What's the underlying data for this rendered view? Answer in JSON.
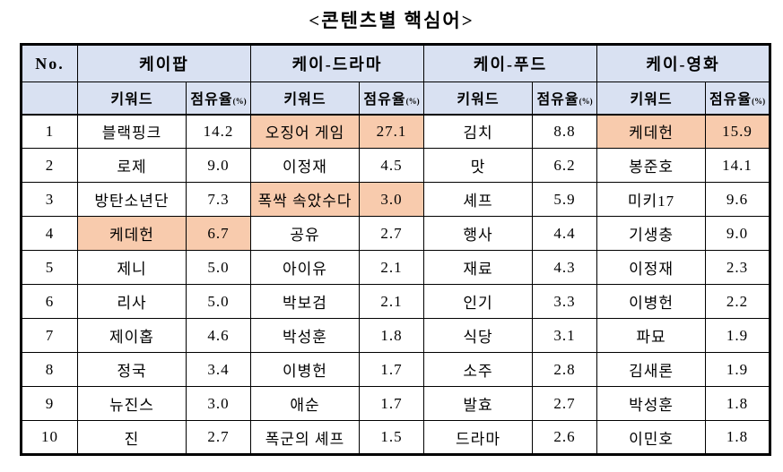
{
  "title": "<콘텐츠별 핵심어>",
  "colors": {
    "header_bg": "#D9E1F2",
    "highlight_bg": "#F8CBAD",
    "border": "#000000",
    "text": "#000000"
  },
  "table": {
    "no_header": "No.",
    "categories": [
      "케이팝",
      "케이-드라마",
      "케이-푸드",
      "케이-영화"
    ],
    "keyword_label": "키워드",
    "share_label": "점유율",
    "share_unit": "(%)",
    "rows": [
      {
        "no": "1",
        "cells": [
          {
            "kw": "블랙핑크",
            "share": "14.2",
            "hl": false
          },
          {
            "kw": "오징어 게임",
            "share": "27.1",
            "hl": true
          },
          {
            "kw": "김치",
            "share": "8.8",
            "hl": false
          },
          {
            "kw": "케데헌",
            "share": "15.9",
            "hl": true
          }
        ]
      },
      {
        "no": "2",
        "cells": [
          {
            "kw": "로제",
            "share": "9.0",
            "hl": false
          },
          {
            "kw": "이정재",
            "share": "4.5",
            "hl": false
          },
          {
            "kw": "맛",
            "share": "6.2",
            "hl": false
          },
          {
            "kw": "봉준호",
            "share": "14.1",
            "hl": false
          }
        ]
      },
      {
        "no": "3",
        "cells": [
          {
            "kw": "방탄소년단",
            "share": "7.3",
            "hl": false
          },
          {
            "kw": "폭싹 속았수다",
            "share": "3.0",
            "hl": true
          },
          {
            "kw": "셰프",
            "share": "5.9",
            "hl": false
          },
          {
            "kw": "미키17",
            "share": "9.6",
            "hl": false
          }
        ]
      },
      {
        "no": "4",
        "cells": [
          {
            "kw": "케데헌",
            "share": "6.7",
            "hl": true
          },
          {
            "kw": "공유",
            "share": "2.7",
            "hl": false
          },
          {
            "kw": "행사",
            "share": "4.4",
            "hl": false
          },
          {
            "kw": "기생충",
            "share": "9.0",
            "hl": false
          }
        ]
      },
      {
        "no": "5",
        "cells": [
          {
            "kw": "제니",
            "share": "5.0",
            "hl": false
          },
          {
            "kw": "아이유",
            "share": "2.1",
            "hl": false
          },
          {
            "kw": "재료",
            "share": "4.3",
            "hl": false
          },
          {
            "kw": "이정재",
            "share": "2.3",
            "hl": false
          }
        ]
      },
      {
        "no": "6",
        "cells": [
          {
            "kw": "리사",
            "share": "5.0",
            "hl": false
          },
          {
            "kw": "박보검",
            "share": "2.1",
            "hl": false
          },
          {
            "kw": "인기",
            "share": "3.3",
            "hl": false
          },
          {
            "kw": "이병헌",
            "share": "2.2",
            "hl": false
          }
        ]
      },
      {
        "no": "7",
        "cells": [
          {
            "kw": "제이홉",
            "share": "4.6",
            "hl": false
          },
          {
            "kw": "박성훈",
            "share": "1.8",
            "hl": false
          },
          {
            "kw": "식당",
            "share": "3.1",
            "hl": false
          },
          {
            "kw": "파묘",
            "share": "1.9",
            "hl": false
          }
        ]
      },
      {
        "no": "8",
        "cells": [
          {
            "kw": "정국",
            "share": "3.4",
            "hl": false
          },
          {
            "kw": "이병헌",
            "share": "1.7",
            "hl": false
          },
          {
            "kw": "소주",
            "share": "2.8",
            "hl": false
          },
          {
            "kw": "김새론",
            "share": "1.9",
            "hl": false
          }
        ]
      },
      {
        "no": "9",
        "cells": [
          {
            "kw": "뉴진스",
            "share": "3.0",
            "hl": false
          },
          {
            "kw": "애순",
            "share": "1.7",
            "hl": false
          },
          {
            "kw": "발효",
            "share": "2.7",
            "hl": false
          },
          {
            "kw": "박성훈",
            "share": "1.8",
            "hl": false
          }
        ]
      },
      {
        "no": "10",
        "cells": [
          {
            "kw": "진",
            "share": "2.7",
            "hl": false
          },
          {
            "kw": "폭군의 셰프",
            "share": "1.5",
            "hl": false
          },
          {
            "kw": "드라마",
            "share": "2.6",
            "hl": false
          },
          {
            "kw": "이민호",
            "share": "1.8",
            "hl": false
          }
        ]
      }
    ]
  }
}
